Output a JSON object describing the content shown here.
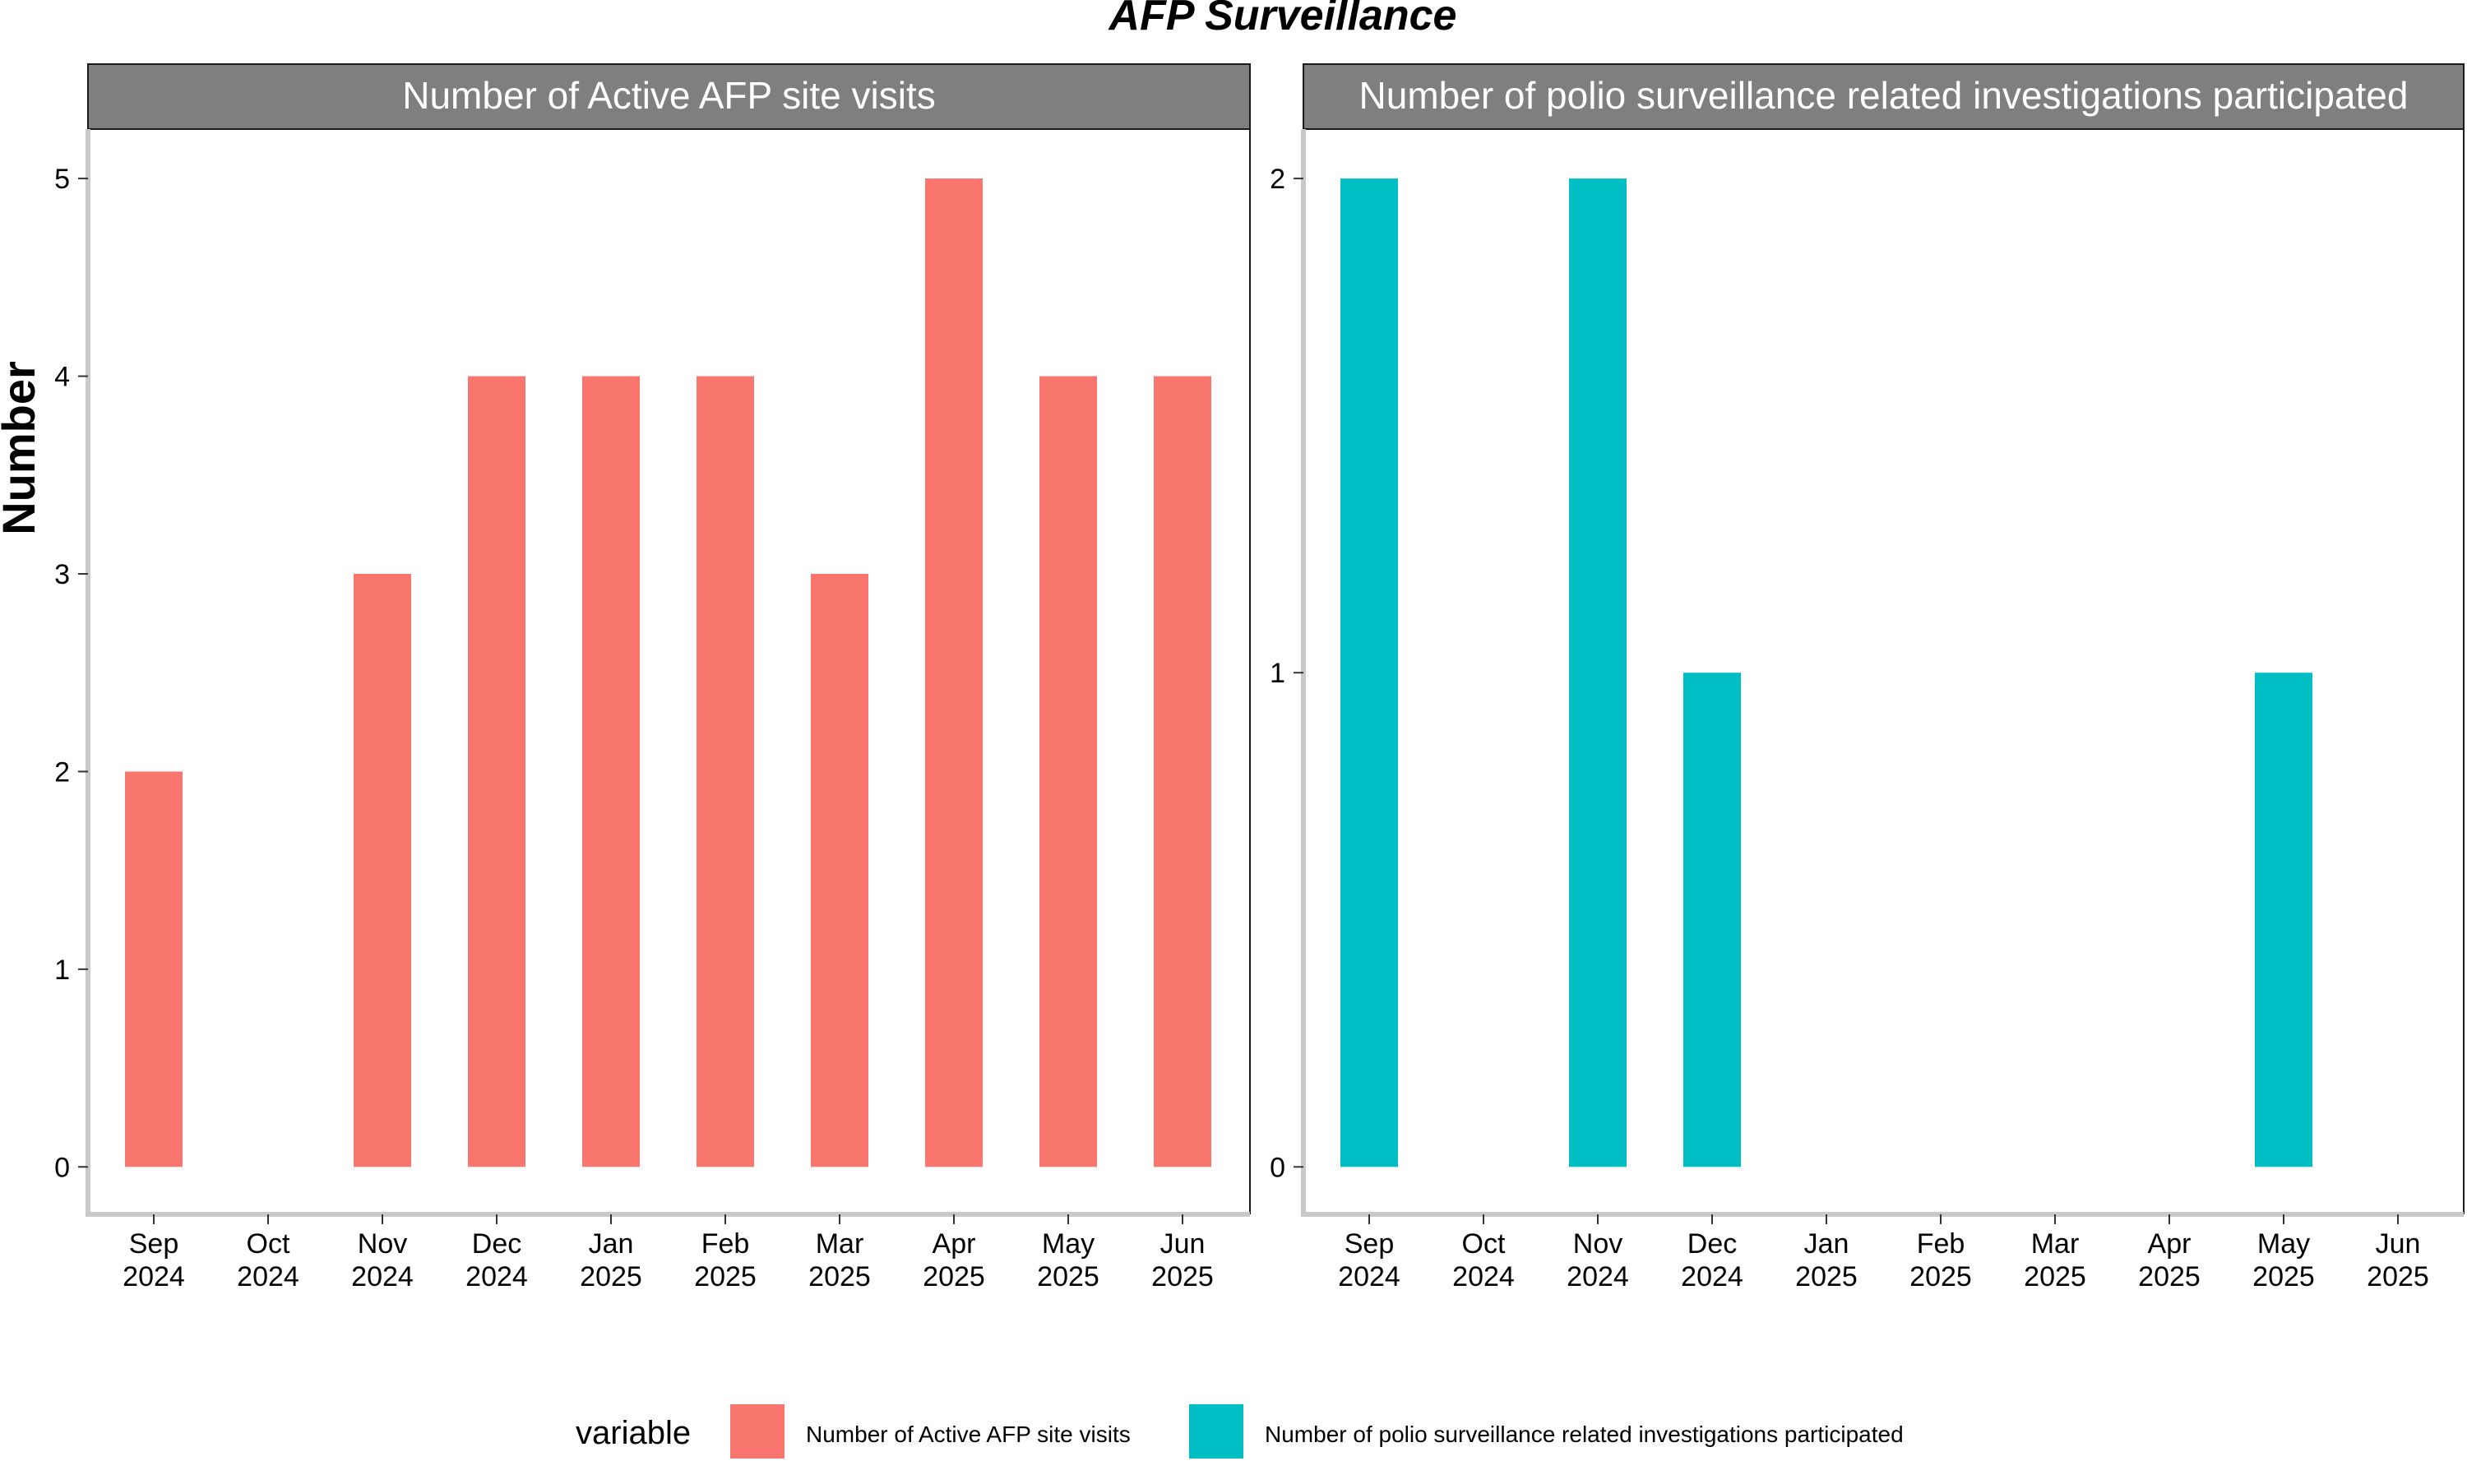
{
  "title": "AFP Surveillance",
  "ylabel": "Number",
  "legend": {
    "title": "variable",
    "items": [
      {
        "label": "Number of Active AFP site visits",
        "color": "#F8766D"
      },
      {
        "label": "Number of polio surveillance related investigations participated",
        "color": "#00BFC4"
      }
    ]
  },
  "chart_data": [
    {
      "type": "bar",
      "title": "Number of Active AFP site visits",
      "categories": [
        [
          "Sep",
          "2024"
        ],
        [
          "Oct",
          "2024"
        ],
        [
          "Nov",
          "2024"
        ],
        [
          "Dec",
          "2024"
        ],
        [
          "Jan",
          "2025"
        ],
        [
          "Feb",
          "2025"
        ],
        [
          "Mar",
          "2025"
        ],
        [
          "Apr",
          "2025"
        ],
        [
          "May",
          "2025"
        ],
        [
          "Jun",
          "2025"
        ]
      ],
      "series": [
        {
          "name": "Number of Active AFP site visits",
          "color": "#F8766D",
          "values": [
            2,
            null,
            3,
            4,
            4,
            4,
            3,
            5,
            4,
            4
          ]
        }
      ],
      "yticks": [
        0,
        1,
        2,
        3,
        4,
        5
      ],
      "ylim": [
        -0.24,
        5.25
      ],
      "ylabel": "Number"
    },
    {
      "type": "bar",
      "title": "Number of polio surveillance related investigations participated",
      "categories": [
        [
          "Sep",
          "2024"
        ],
        [
          "Oct",
          "2024"
        ],
        [
          "Nov",
          "2024"
        ],
        [
          "Dec",
          "2024"
        ],
        [
          "Jan",
          "2025"
        ],
        [
          "Feb",
          "2025"
        ],
        [
          "Mar",
          "2025"
        ],
        [
          "Apr",
          "2025"
        ],
        [
          "May",
          "2025"
        ],
        [
          "Jun",
          "2025"
        ]
      ],
      "series": [
        {
          "name": "Number of polio surveillance related investigations participated",
          "color": "#00BFC4",
          "values": [
            2,
            null,
            2,
            1,
            null,
            null,
            null,
            null,
            1,
            null
          ]
        }
      ],
      "yticks": [
        0,
        1,
        2
      ],
      "ylim": [
        -0.096,
        2.1
      ]
    }
  ]
}
